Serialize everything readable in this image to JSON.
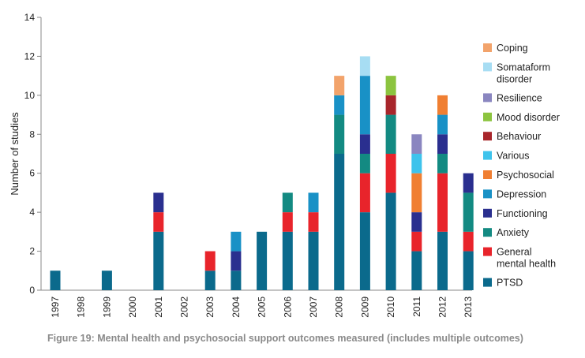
{
  "caption": "Figure 19: Mental health and psychosocial support outcomes measured (includes multiple outcomes)",
  "chart_data": {
    "type": "bar",
    "stacked": true,
    "categories": [
      "1997",
      "1998",
      "1999",
      "2000",
      "2001",
      "2002",
      "2003",
      "2004",
      "2005",
      "2006",
      "2007",
      "2008",
      "2009",
      "2010",
      "2011",
      "2012",
      "2013"
    ],
    "ylabel": "Number of studies",
    "xlabel": "",
    "ylim": [
      0,
      14
    ],
    "yticks": [
      0,
      2,
      4,
      6,
      8,
      10,
      12,
      14
    ],
    "grid": false,
    "legend_position": "right",
    "series": [
      {
        "name": "PTSD",
        "color": "#0b6a8c",
        "values": [
          1,
          0,
          1,
          0,
          3,
          0,
          1,
          1,
          3,
          3,
          3,
          7,
          4,
          5,
          2,
          3,
          2
        ]
      },
      {
        "name": "General mental health",
        "legend_lines": [
          "General",
          "mental health"
        ],
        "color": "#e8242b",
        "values": [
          0,
          0,
          0,
          0,
          1,
          0,
          1,
          0,
          0,
          1,
          1,
          0,
          2,
          2,
          1,
          3,
          1
        ]
      },
      {
        "name": "Anxiety",
        "color": "#138a82",
        "values": [
          0,
          0,
          0,
          0,
          0,
          0,
          0,
          0,
          0,
          1,
          0,
          2,
          1,
          2,
          0,
          1,
          2
        ]
      },
      {
        "name": "Functioning",
        "color": "#2a2f8f",
        "values": [
          0,
          0,
          0,
          0,
          1,
          0,
          0,
          1,
          0,
          0,
          0,
          0,
          1,
          0,
          1,
          1,
          1
        ]
      },
      {
        "name": "Depression",
        "color": "#1991c6",
        "values": [
          0,
          0,
          0,
          0,
          0,
          0,
          0,
          1,
          0,
          0,
          1,
          1,
          3,
          0,
          0,
          1,
          0
        ]
      },
      {
        "name": "Psychosocial",
        "color": "#f07f32",
        "values": [
          0,
          0,
          0,
          0,
          0,
          0,
          0,
          0,
          0,
          0,
          0,
          0,
          0,
          0,
          2,
          1,
          0
        ]
      },
      {
        "name": "Various",
        "color": "#3ec3ec",
        "values": [
          0,
          0,
          0,
          0,
          0,
          0,
          0,
          0,
          0,
          0,
          0,
          0,
          0,
          0,
          1,
          0,
          0
        ]
      },
      {
        "name": "Behaviour",
        "color": "#a8262b",
        "values": [
          0,
          0,
          0,
          0,
          0,
          0,
          0,
          0,
          0,
          0,
          0,
          0,
          0,
          1,
          0,
          0,
          0
        ]
      },
      {
        "name": "Mood disorder",
        "color": "#8cc43f",
        "values": [
          0,
          0,
          0,
          0,
          0,
          0,
          0,
          0,
          0,
          0,
          0,
          0,
          0,
          1,
          0,
          0,
          0
        ]
      },
      {
        "name": "Resilience",
        "color": "#8a86c0",
        "values": [
          0,
          0,
          0,
          0,
          0,
          0,
          0,
          0,
          0,
          0,
          0,
          0,
          0,
          0,
          1,
          0,
          0
        ]
      },
      {
        "name": "Somataform disorder",
        "legend_lines": [
          "Somataform",
          "disorder"
        ],
        "color": "#a7ddf3",
        "values": [
          0,
          0,
          0,
          0,
          0,
          0,
          0,
          0,
          0,
          0,
          0,
          0,
          1,
          0,
          0,
          0,
          0
        ]
      },
      {
        "name": "Coping",
        "color": "#f2a36b",
        "values": [
          0,
          0,
          0,
          0,
          0,
          0,
          0,
          0,
          0,
          0,
          0,
          1,
          0,
          0,
          0,
          0,
          0
        ]
      }
    ]
  }
}
